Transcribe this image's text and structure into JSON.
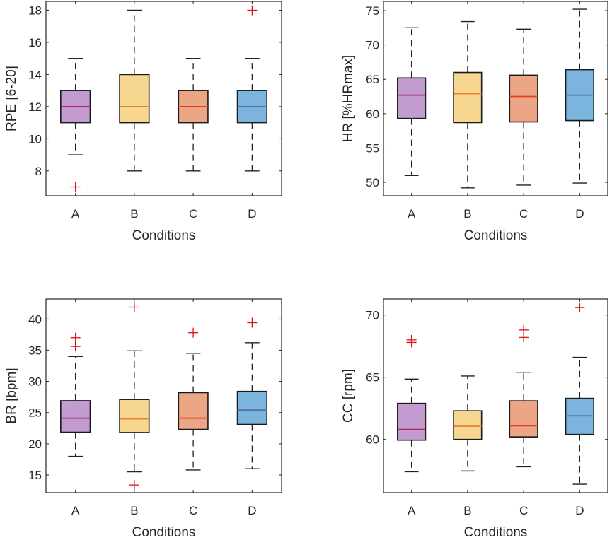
{
  "chart_data": [
    {
      "type": "box",
      "xlabel": "Conditions",
      "ylabel": "RPE [6-20]",
      "categories": [
        "A",
        "B",
        "C",
        "D"
      ],
      "ylim": [
        6.45,
        18.55
      ],
      "yticks": [
        8,
        10,
        12,
        14,
        16,
        18
      ],
      "boxes": [
        {
          "whisker_low": 9,
          "q1": 11,
          "median": 12,
          "q3": 13,
          "whisker_high": 15,
          "outliers": [
            7
          ]
        },
        {
          "whisker_low": 8,
          "q1": 11,
          "median": 12,
          "q3": 14,
          "whisker_high": 18,
          "outliers": []
        },
        {
          "whisker_low": 8,
          "q1": 11,
          "median": 12,
          "q3": 13,
          "whisker_high": 15,
          "outliers": []
        },
        {
          "whisker_low": 8,
          "q1": 11,
          "median": 12,
          "q3": 13,
          "whisker_high": 15,
          "outliers": [
            18
          ]
        }
      ]
    },
    {
      "type": "box",
      "xlabel": "Conditions",
      "ylabel": "HR [%HRmax]",
      "categories": [
        "A",
        "B",
        "C",
        "D"
      ],
      "ylim": [
        48.05,
        76.34
      ],
      "yticks": [
        50,
        55,
        60,
        65,
        70,
        75
      ],
      "boxes": [
        {
          "whisker_low": 51.0,
          "q1": 59.3,
          "median": 62.7,
          "q3": 65.2,
          "whisker_high": 72.5,
          "outliers": []
        },
        {
          "whisker_low": 49.2,
          "q1": 58.7,
          "median": 62.9,
          "q3": 66.0,
          "whisker_high": 73.4,
          "outliers": []
        },
        {
          "whisker_low": 49.6,
          "q1": 58.8,
          "median": 62.5,
          "q3": 65.6,
          "whisker_high": 72.3,
          "outliers": []
        },
        {
          "whisker_low": 49.9,
          "q1": 59.0,
          "median": 62.7,
          "q3": 66.4,
          "whisker_high": 75.2,
          "outliers": []
        }
      ]
    },
    {
      "type": "box",
      "xlabel": "Conditions",
      "ylabel": "BR [bpm]",
      "categories": [
        "A",
        "B",
        "C",
        "D"
      ],
      "ylim": [
        12.17,
        43.2
      ],
      "yticks": [
        15,
        20,
        25,
        30,
        35,
        40
      ],
      "boxes": [
        {
          "whisker_low": 18.0,
          "q1": 21.85,
          "median": 24.1,
          "q3": 26.9,
          "whisker_high": 34.0,
          "outliers": [
            35.6,
            37.0
          ]
        },
        {
          "whisker_low": 15.5,
          "q1": 21.8,
          "median": 24.0,
          "q3": 27.1,
          "whisker_high": 34.9,
          "outliers": [
            13.4,
            41.9
          ]
        },
        {
          "whisker_low": 15.8,
          "q1": 22.3,
          "median": 24.1,
          "q3": 28.2,
          "whisker_high": 34.5,
          "outliers": [
            37.8
          ]
        },
        {
          "whisker_low": 16.0,
          "q1": 23.1,
          "median": 25.4,
          "q3": 28.4,
          "whisker_high": 36.2,
          "outliers": [
            39.4
          ]
        }
      ]
    },
    {
      "type": "box",
      "xlabel": "Conditions",
      "ylabel": "CC [rpm]",
      "categories": [
        "A",
        "B",
        "C",
        "D"
      ],
      "ylim": [
        55.72,
        71.29
      ],
      "yticks": [
        60,
        65,
        70
      ],
      "boxes": [
        {
          "whisker_low": 57.4,
          "q1": 59.94,
          "median": 60.8,
          "q3": 62.9,
          "whisker_high": 64.85,
          "outliers": [
            67.8,
            68.0
          ]
        },
        {
          "whisker_low": 57.46,
          "q1": 60.0,
          "median": 61.06,
          "q3": 62.3,
          "whisker_high": 65.1,
          "outliers": []
        },
        {
          "whisker_low": 57.8,
          "q1": 60.2,
          "median": 61.1,
          "q3": 63.1,
          "whisker_high": 65.4,
          "outliers": [
            68.2,
            68.8
          ]
        },
        {
          "whisker_low": 56.4,
          "q1": 60.4,
          "median": 61.9,
          "q3": 63.3,
          "whisker_high": 66.6,
          "outliers": [
            70.6
          ]
        }
      ]
    }
  ],
  "colors": {
    "fills": [
      "#c29bd0",
      "#f7d68f",
      "#eda685",
      "#7bb5de"
    ],
    "medians": [
      "#b3245e",
      "#e9842e",
      "#e2401c",
      "#5a6aa8"
    ],
    "outlier": "#e0101a",
    "axis": "#262626"
  }
}
